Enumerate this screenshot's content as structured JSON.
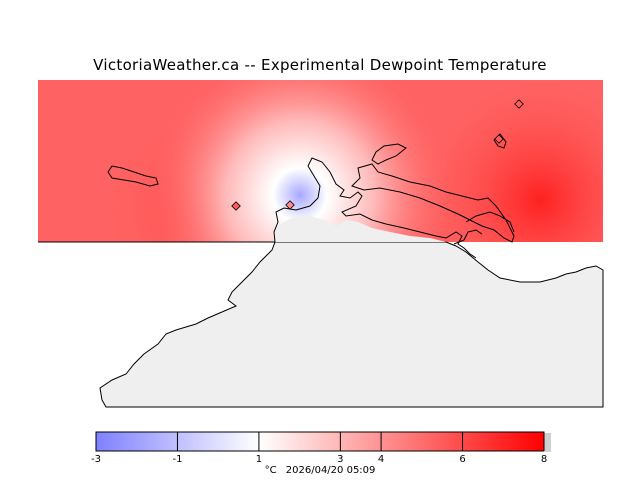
{
  "title": "VictoriaWeather.ca -- Experimental Dewpoint Temperature",
  "legend": {
    "unit": "°C",
    "timestamp": "2026/04/20 05:09",
    "min": -3,
    "max": 8,
    "tick_labels": [
      "-3",
      "-1",
      "1",
      "3",
      "4",
      "6",
      "8"
    ],
    "tick_values": [
      -3,
      -1,
      1,
      3,
      4,
      6,
      8
    ],
    "colors": {
      "cold": "#8080ff",
      "neutral": "#ffffff",
      "warm": "#ff0000"
    }
  },
  "colors": {
    "land": "#efefef",
    "background": "#ffffff",
    "coastline": "#000000"
  },
  "stations": [
    {
      "dewpoint_c": 5
    },
    {
      "dewpoint_c": -1
    },
    {
      "dewpoint_c": 6
    },
    {
      "dewpoint_c": 6
    }
  ]
}
